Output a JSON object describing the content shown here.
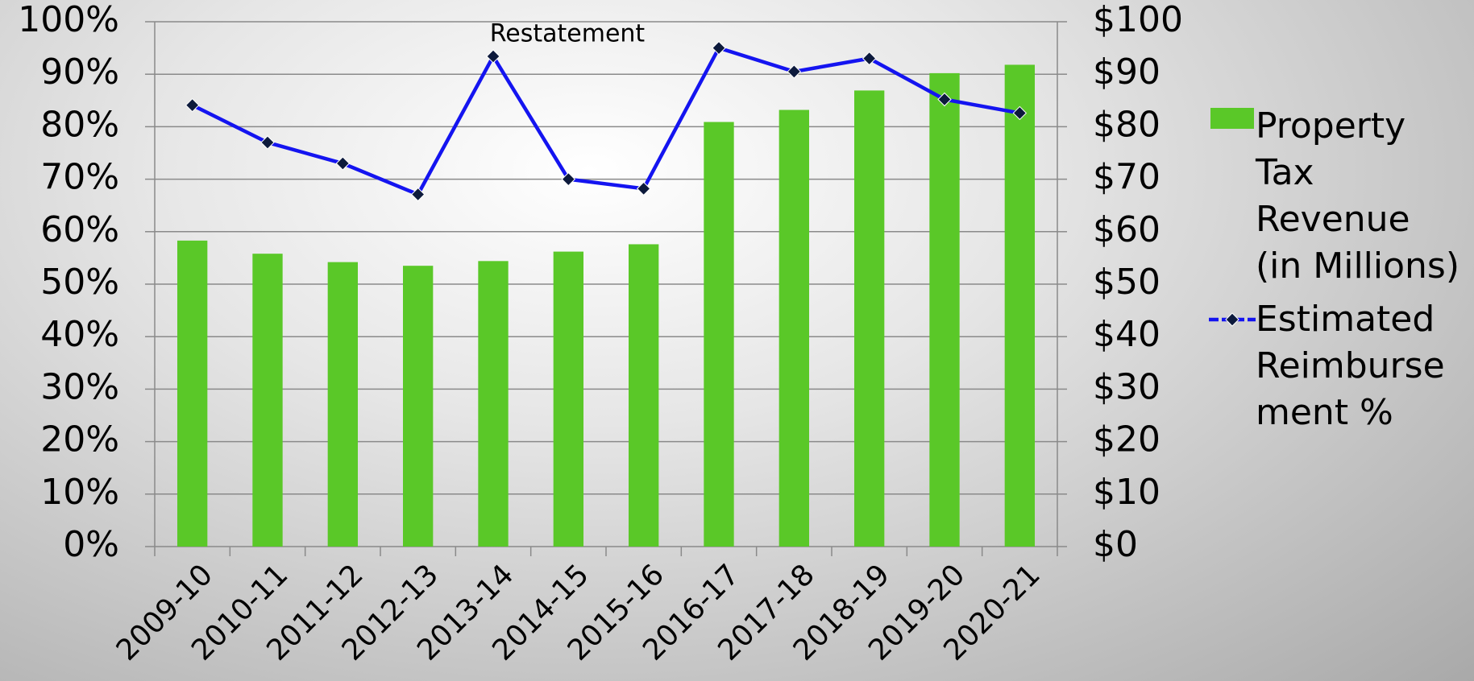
{
  "chart_data": {
    "type": "bar-line",
    "categories": [
      "2009-10",
      "2010-11",
      "2011-12",
      "2012-13",
      "2013-14",
      "2014-15",
      "2015-16",
      "2016-17",
      "2017-18",
      "2018-19",
      "2019-20",
      "2020-21"
    ],
    "series": [
      {
        "name": "Property Tax Revenue (in Millions)",
        "type": "bar",
        "axis": "y2",
        "color": "#5ac828",
        "values": [
          58.3,
          55.8,
          54.2,
          53.5,
          54.4,
          56.2,
          57.6,
          80.9,
          83.2,
          86.9,
          90.2,
          91.8
        ]
      },
      {
        "name": "Estimated Reimbursement %",
        "type": "line",
        "axis": "y",
        "color": "#1414f0",
        "values": [
          84.1,
          77.0,
          73.0,
          67.1,
          93.4,
          70.0,
          68.2,
          95.0,
          90.5,
          93.0,
          85.2,
          82.6
        ]
      }
    ],
    "annotation": "Restatement",
    "ylim": [
      0,
      100
    ],
    "yticks": [
      {
        "value": 0,
        "label": "0%"
      },
      {
        "value": 10,
        "label": "10%"
      },
      {
        "value": 20,
        "label": "20%"
      },
      {
        "value": 30,
        "label": "30%"
      },
      {
        "value": 40,
        "label": "40%"
      },
      {
        "value": 50,
        "label": "50%"
      },
      {
        "value": 60,
        "label": "60%"
      },
      {
        "value": 70,
        "label": "70%"
      },
      {
        "value": 80,
        "label": "80%"
      },
      {
        "value": 90,
        "label": "90%"
      },
      {
        "value": 100,
        "label": "100%"
      }
    ],
    "y2lim": [
      0,
      100
    ],
    "y2ticks": [
      {
        "value": 0,
        "label": "$0"
      },
      {
        "value": 10,
        "label": "$10"
      },
      {
        "value": 20,
        "label": "$20"
      },
      {
        "value": 30,
        "label": "$30"
      },
      {
        "value": 40,
        "label": "$40"
      },
      {
        "value": 50,
        "label": "$50"
      },
      {
        "value": 60,
        "label": "$60"
      },
      {
        "value": 70,
        "label": "$70"
      },
      {
        "value": 80,
        "label": "$80"
      },
      {
        "value": 90,
        "label": "$90"
      },
      {
        "value": 100,
        "label": "$100"
      }
    ],
    "grid": true,
    "legend": "right"
  }
}
